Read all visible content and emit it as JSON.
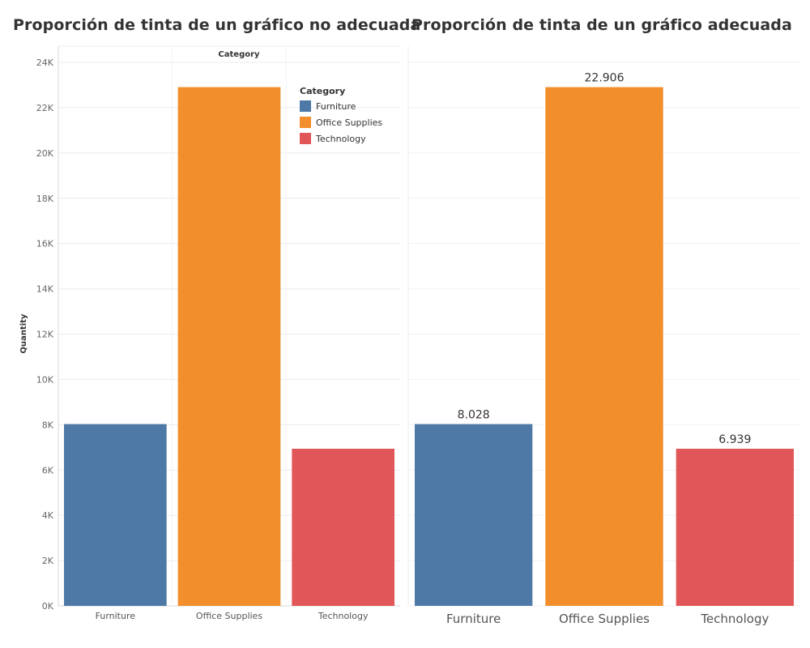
{
  "titles": {
    "left": "Proporción de tinta de un gráfico no adecuada",
    "right": "Proporción de tinta de un gráfico adecuada"
  },
  "chart_data": [
    {
      "type": "bar",
      "title": "Proporción de tinta de un gráfico no adecuada",
      "column_header": "Category",
      "ylabel": "Quantity",
      "xlabel": "",
      "categories": [
        "Furniture",
        "Office Supplies",
        "Technology"
      ],
      "values": [
        8028,
        22906,
        6939
      ],
      "colors": [
        "#4e79a7",
        "#f28e2b",
        "#e15759"
      ],
      "ylim": [
        0,
        24000
      ],
      "yticks": [
        0,
        2000,
        4000,
        6000,
        8000,
        10000,
        12000,
        14000,
        16000,
        18000,
        20000,
        22000,
        24000
      ],
      "ytick_labels": [
        "0K",
        "2K",
        "4K",
        "6K",
        "8K",
        "10K",
        "12K",
        "14K",
        "16K",
        "18K",
        "20K",
        "22K",
        "24K"
      ],
      "grid": true,
      "legend": {
        "title": "Category",
        "placement": "top-right",
        "entries": [
          "Furniture",
          "Office Supplies",
          "Technology"
        ]
      }
    },
    {
      "type": "bar",
      "title": "Proporción de tinta de un gráfico adecuada",
      "categories": [
        "Furniture",
        "Office Supplies",
        "Technology"
      ],
      "values": [
        8028,
        22906,
        6939
      ],
      "data_labels": [
        "8.028",
        "22.906",
        "6.939"
      ],
      "colors": [
        "#4e79a7",
        "#f28e2b",
        "#e15759"
      ],
      "ylim": [
        0,
        24000
      ],
      "grid": true,
      "axes_shown": false
    }
  ]
}
